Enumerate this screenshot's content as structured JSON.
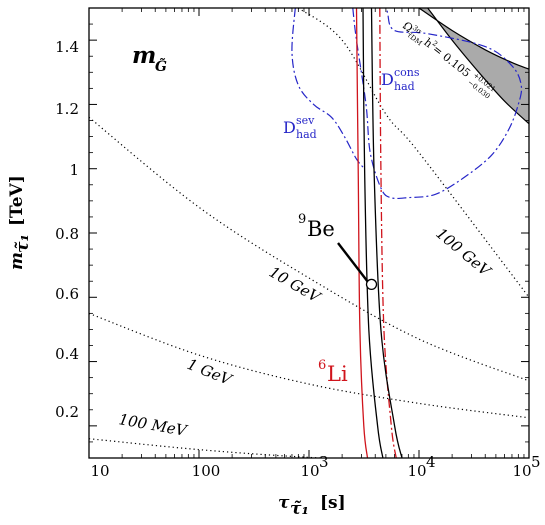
{
  "chart_data": {
    "type": "line",
    "x_scale": "log",
    "xlim": [
      10,
      100000
    ],
    "ylim": [
      0.1,
      1.5
    ],
    "grid": false,
    "xlabel": {
      "main": "τ",
      "sub": "τ̃₁",
      "unit": "[s]"
    },
    "ylabel": {
      "main": "m",
      "sub": "τ̃₁",
      "unit": "[TeV]"
    },
    "x_ticks": [
      10,
      100,
      1000,
      10000,
      100000
    ],
    "x_tick_labels": [
      "10",
      "100",
      "10",
      "10",
      "10"
    ],
    "x_tick_exponents": [
      "",
      "",
      "3",
      "4",
      "5"
    ],
    "y_ticks": [
      0.2,
      0.4,
      0.6,
      0.8,
      1.0,
      1.2,
      1.4
    ],
    "y_tick_labels": [
      "0.2",
      "0.4",
      "0.6",
      "0.8",
      "1",
      "1.2",
      "1.4"
    ],
    "panel_label": "m",
    "panel_label_sub": "G̃",
    "colors": {
      "black": "#000000",
      "red": "#d0141c",
      "blue": "#2626c8",
      "band_fill": "#aaaaaa"
    },
    "gravitino_curves": [
      {
        "label": "100 MeV",
        "points": [
          [
            10,
            0.16
          ],
          [
            100,
            0.126
          ],
          [
            1000,
            0.102
          ],
          [
            10000,
            0.087
          ],
          [
            100000,
            0.075
          ]
        ]
      },
      {
        "label": "1 GeV",
        "points": [
          [
            10,
            0.55
          ],
          [
            100,
            0.42
          ],
          [
            1000,
            0.33
          ],
          [
            10000,
            0.27
          ],
          [
            100000,
            0.225
          ]
        ]
      },
      {
        "label": "10 GeV",
        "points": [
          [
            10,
            1.16
          ],
          [
            100,
            0.88
          ],
          [
            1000,
            0.66
          ],
          [
            10000,
            0.47
          ],
          [
            100000,
            0.34
          ]
        ]
      },
      {
        "label": "100 GeV",
        "points": [
          [
            800,
            1.5
          ],
          [
            2000,
            1.4
          ],
          [
            5000,
            1.17
          ],
          [
            10000,
            1.05
          ],
          [
            100000,
            0.6
          ]
        ]
      }
    ],
    "li6_bound": {
      "label": "Li",
      "label_superscript": "6",
      "solid": [
        [
          2700,
          1.5
        ],
        [
          2800,
          1.0
        ],
        [
          2900,
          0.5
        ],
        [
          3150,
          0.2
        ],
        [
          3400,
          0.1
        ]
      ],
      "dashdot": [
        [
          4400,
          1.5
        ],
        [
          4500,
          1.0
        ],
        [
          4800,
          0.5
        ],
        [
          5600,
          0.2
        ],
        [
          6200,
          0.1
        ]
      ]
    },
    "be9_bound": {
      "label": "Be",
      "label_superscript": "9",
      "curves": [
        [
          [
            3100,
            1.5
          ],
          [
            3200,
            1.0
          ],
          [
            3500,
            0.5
          ],
          [
            4200,
            0.2
          ],
          [
            4700,
            0.1
          ]
        ],
        [
          [
            3700,
            1.5
          ],
          [
            3900,
            1.0
          ],
          [
            4500,
            0.5
          ],
          [
            6000,
            0.2
          ],
          [
            7000,
            0.1
          ]
        ]
      ],
      "marker": [
        3700,
        0.64
      ]
    },
    "hadronic_sev": {
      "label": "D",
      "label_sup": "sev",
      "label_sub": "had",
      "points": [
        [
          750,
          1.5
        ],
        [
          700,
          1.36
        ],
        [
          800,
          1.26
        ],
        [
          1100,
          1.2
        ],
        [
          1600,
          1.16
        ],
        [
          2100,
          1.1
        ],
        [
          2700,
          1.03
        ],
        [
          3200,
          1.0
        ]
      ]
    },
    "hadronic_cons": {
      "label": "D",
      "label_sup": "cons",
      "label_sub": "had",
      "points": [
        [
          2500,
          1.5
        ],
        [
          2700,
          1.4
        ],
        [
          3300,
          1.2
        ],
        [
          3600,
          1.05
        ],
        [
          4500,
          0.94
        ],
        [
          5500,
          0.91
        ],
        [
          8000,
          0.91
        ],
        [
          14000,
          0.92
        ],
        [
          25000,
          0.97
        ],
        [
          45000,
          1.04
        ],
        [
          65000,
          1.12
        ],
        [
          80000,
          1.2
        ],
        [
          85000,
          1.26
        ],
        [
          70000,
          1.32
        ],
        [
          40000,
          1.38
        ],
        [
          12000,
          1.42
        ],
        [
          6000,
          1.43
        ],
        [
          5200,
          1.48
        ],
        [
          5200,
          1.5
        ]
      ]
    },
    "dark_matter_band": {
      "label_prefix": "Ω",
      "label_sup": "3σ",
      "label_sub": "τ̃DM",
      "label_h": "h",
      "label_h_exp": "2",
      "label_eq": " = 0.105",
      "label_err_up": "+0.021",
      "label_err_down": "−0.030",
      "upper": [
        [
          10000,
          1.5
        ],
        [
          20000,
          1.43
        ],
        [
          40000,
          1.37
        ],
        [
          70000,
          1.33
        ],
        [
          100000,
          1.31
        ]
      ],
      "lower": [
        [
          100000,
          1.14
        ],
        [
          60000,
          1.21
        ],
        [
          35000,
          1.3
        ],
        [
          20000,
          1.4
        ],
        [
          12000,
          1.5
        ]
      ]
    }
  }
}
